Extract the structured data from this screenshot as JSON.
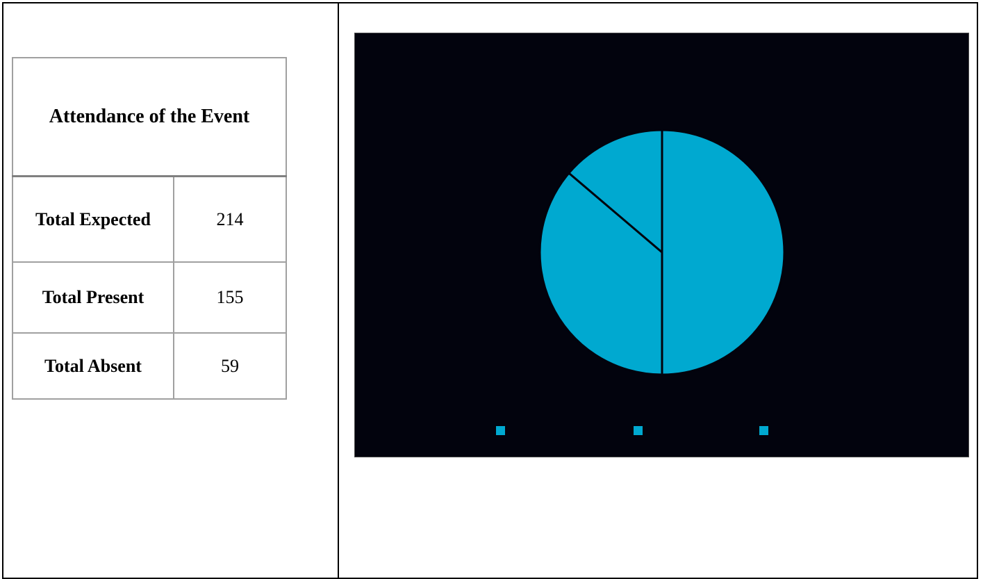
{
  "table": {
    "title": "Attendance of the Event",
    "rows": [
      {
        "label": "Total Expected",
        "value": "214"
      },
      {
        "label": "Total Present",
        "value": "155"
      },
      {
        "label": "Total Absent",
        "value": "59"
      }
    ]
  },
  "chart_data": {
    "type": "pie",
    "title": "",
    "values": [
      214,
      155,
      59
    ],
    "categories": [
      "",
      "",
      ""
    ],
    "legend_placement": "bottom",
    "colors": {
      "background": "#02030d",
      "slice": "#00a9d0",
      "separator": "#02030d"
    }
  }
}
